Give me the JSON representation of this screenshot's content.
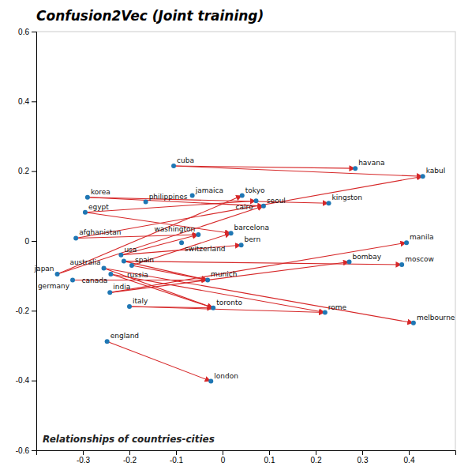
{
  "chart_data": {
    "type": "scatter",
    "title": "Confusion2Vec (Joint training)",
    "subtitle": "Relationships of countries-cities",
    "xlim": [
      -0.4,
      0.5
    ],
    "ylim": [
      -0.6,
      0.6
    ],
    "xticks": [
      -0.3,
      -0.2,
      -0.1,
      0.0,
      0.1,
      0.2,
      0.3,
      0.4
    ],
    "yticks": [
      -0.6,
      -0.4,
      -0.2,
      0.0,
      0.2,
      0.4,
      0.6
    ],
    "points": [
      {
        "label": "cuba",
        "x": -0.105,
        "y": 0.215
      },
      {
        "label": "havana",
        "x": 0.285,
        "y": 0.208
      },
      {
        "label": "kabul",
        "x": 0.43,
        "y": 0.185
      },
      {
        "label": "korea",
        "x": -0.29,
        "y": 0.125
      },
      {
        "label": "philippines",
        "x": -0.165,
        "y": 0.112
      },
      {
        "label": "jamaica",
        "x": -0.065,
        "y": 0.13
      },
      {
        "label": "tokyo",
        "x": 0.042,
        "y": 0.13
      },
      {
        "label": "cairo",
        "x": 0.072,
        "y": 0.115
      },
      {
        "label": "seoul",
        "x": 0.088,
        "y": 0.1
      },
      {
        "label": "kingston",
        "x": 0.228,
        "y": 0.108
      },
      {
        "label": "egypt",
        "x": -0.295,
        "y": 0.082
      },
      {
        "label": "afghanistan",
        "x": -0.315,
        "y": 0.008
      },
      {
        "label": "washington",
        "x": -0.052,
        "y": 0.018
      },
      {
        "label": "barcelona",
        "x": 0.018,
        "y": 0.022
      },
      {
        "label": "switzerland",
        "x": -0.088,
        "y": -0.005
      },
      {
        "label": "bern",
        "x": 0.04,
        "y": -0.012
      },
      {
        "label": "manila",
        "x": 0.395,
        "y": -0.005
      },
      {
        "label": "usa",
        "x": -0.218,
        "y": -0.04
      },
      {
        "label": "russia",
        "x": -0.212,
        "y": -0.058
      },
      {
        "label": "spain",
        "x": -0.195,
        "y": -0.07
      },
      {
        "label": "bombay",
        "x": 0.272,
        "y": -0.06
      },
      {
        "label": "moscow",
        "x": 0.385,
        "y": -0.068
      },
      {
        "label": "australia",
        "x": -0.255,
        "y": -0.078
      },
      {
        "label": "japan",
        "x": -0.355,
        "y": -0.095
      },
      {
        "label": "canada",
        "x": -0.24,
        "y": -0.095
      },
      {
        "label": "germany",
        "x": -0.322,
        "y": -0.112
      },
      {
        "label": "india",
        "x": -0.242,
        "y": -0.148
      },
      {
        "label": "munich",
        "x": -0.032,
        "y": -0.112
      },
      {
        "label": "italy",
        "x": -0.2,
        "y": -0.188
      },
      {
        "label": "toronto",
        "x": -0.02,
        "y": -0.192
      },
      {
        "label": "rome",
        "x": 0.22,
        "y": -0.205
      },
      {
        "label": "melbourne",
        "x": 0.41,
        "y": -0.235
      },
      {
        "label": "england",
        "x": -0.248,
        "y": -0.288
      },
      {
        "label": "london",
        "x": -0.025,
        "y": -0.402
      }
    ],
    "arrows": [
      [
        "cuba",
        "havana"
      ],
      [
        "cuba",
        "kabul"
      ],
      [
        "korea",
        "seoul"
      ],
      [
        "korea",
        "kingston"
      ],
      [
        "egypt",
        "cairo"
      ],
      [
        "egypt",
        "barcelona"
      ],
      [
        "afghanistan",
        "kabul"
      ],
      [
        "afghanistan",
        "washington"
      ],
      [
        "usa",
        "washington"
      ],
      [
        "usa",
        "bern"
      ],
      [
        "russia",
        "moscow"
      ],
      [
        "russia",
        "munich"
      ],
      [
        "australia",
        "melbourne"
      ],
      [
        "australia",
        "toronto"
      ],
      [
        "japan",
        "tokyo"
      ],
      [
        "japan",
        "seoul"
      ],
      [
        "canada",
        "toronto"
      ],
      [
        "canada",
        "rome"
      ],
      [
        "germany",
        "munich"
      ],
      [
        "india",
        "bombay"
      ],
      [
        "india",
        "manila"
      ],
      [
        "italy",
        "rome"
      ],
      [
        "italy",
        "toronto"
      ],
      [
        "england",
        "london"
      ],
      [
        "spain",
        "barcelona"
      ],
      [
        "spain",
        "munich"
      ]
    ]
  }
}
